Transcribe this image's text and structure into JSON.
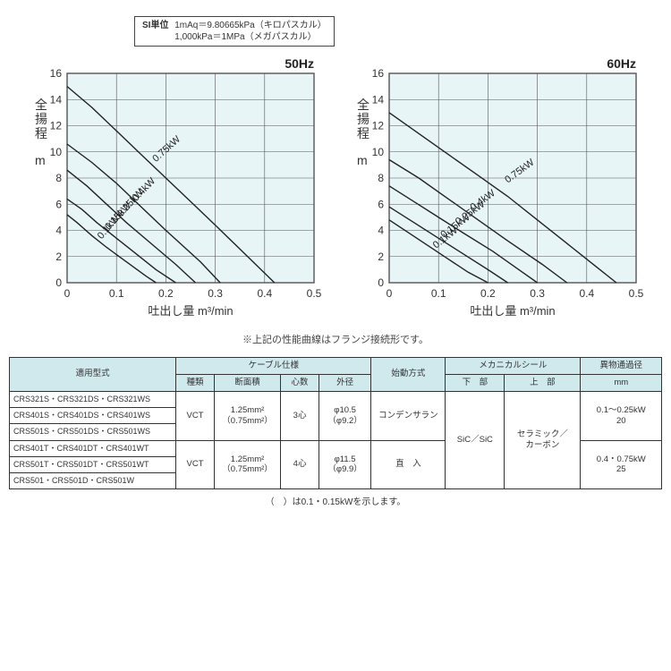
{
  "si_box": {
    "label": "SI単位",
    "line1": "1mAq＝9.80665kPa（キロパスカル）",
    "line2": "1,000kPa＝1MPa（メガパスカル）"
  },
  "charts": {
    "ylabel": "全揚程",
    "yunit": "m",
    "xlabel": "吐出し量 m³/min",
    "ylim": [
      0,
      16
    ],
    "ystep": 2,
    "xlim": [
      0,
      0.5
    ],
    "xstep": 0.1,
    "plot_bg": "#e8f5f7",
    "grid_color": "#555555",
    "line_color": "#222222",
    "line_width": 1.4,
    "label_font_size": 12,
    "axis_font_size": 12,
    "curve_label_font_size": 11,
    "left": {
      "title": "50Hz",
      "curves": [
        {
          "label": "0.1kW",
          "pts": [
            [
              0,
              5.2
            ],
            [
              0.02,
              4.6
            ],
            [
              0.05,
              3.6
            ],
            [
              0.08,
              2.7
            ],
            [
              0.12,
              1.6
            ],
            [
              0.16,
              0.5
            ],
            [
              0.18,
              0
            ]
          ],
          "lx": 0.07,
          "ly": 3.3,
          "rot": -50
        },
        {
          "label": "0.15kW",
          "pts": [
            [
              0,
              6.4
            ],
            [
              0.03,
              5.6
            ],
            [
              0.06,
              4.6
            ],
            [
              0.1,
              3.4
            ],
            [
              0.14,
              2.2
            ],
            [
              0.18,
              1.0
            ],
            [
              0.22,
              0
            ]
          ],
          "lx": 0.085,
          "ly": 4.0,
          "rot": -48
        },
        {
          "label": "0.25kW",
          "pts": [
            [
              0,
              8.6
            ],
            [
              0.04,
              7.4
            ],
            [
              0.08,
              6.0
            ],
            [
              0.12,
              4.6
            ],
            [
              0.17,
              3.0
            ],
            [
              0.22,
              1.4
            ],
            [
              0.26,
              0
            ]
          ],
          "lx": 0.11,
          "ly": 5.0,
          "rot": -48
        },
        {
          "label": "0.4kW",
          "pts": [
            [
              0,
              10.6
            ],
            [
              0.05,
              9.2
            ],
            [
              0.1,
              7.6
            ],
            [
              0.15,
              5.8
            ],
            [
              0.2,
              4.0
            ],
            [
              0.27,
              1.6
            ],
            [
              0.31,
              0
            ]
          ],
          "lx": 0.14,
          "ly": 6.2,
          "rot": -46
        },
        {
          "label": "0.75kW",
          "pts": [
            [
              0,
              15.0
            ],
            [
              0.05,
              13.4
            ],
            [
              0.1,
              11.6
            ],
            [
              0.15,
              9.8
            ],
            [
              0.2,
              8.0
            ],
            [
              0.25,
              6.2
            ],
            [
              0.3,
              4.4
            ],
            [
              0.36,
              2.2
            ],
            [
              0.42,
              0
            ]
          ],
          "lx": 0.18,
          "ly": 9.2,
          "rot": -42
        }
      ]
    },
    "right": {
      "title": "60Hz",
      "curves": [
        {
          "label": "0.1kW",
          "pts": [
            [
              0,
              4.8
            ],
            [
              0.04,
              3.8
            ],
            [
              0.08,
              2.8
            ],
            [
              0.12,
              1.8
            ],
            [
              0.16,
              0.8
            ],
            [
              0.2,
              0
            ]
          ],
          "lx": 0.095,
          "ly": 2.6,
          "rot": -38
        },
        {
          "label": "0.15kW",
          "pts": [
            [
              0,
              5.8
            ],
            [
              0.05,
              4.6
            ],
            [
              0.1,
              3.4
            ],
            [
              0.15,
              2.2
            ],
            [
              0.2,
              1.0
            ],
            [
              0.24,
              0
            ]
          ],
          "lx": 0.11,
          "ly": 3.4,
          "rot": -36
        },
        {
          "label": "0.25kW",
          "pts": [
            [
              0,
              7.4
            ],
            [
              0.05,
              6.2
            ],
            [
              0.1,
              5.0
            ],
            [
              0.15,
              3.8
            ],
            [
              0.21,
              2.4
            ],
            [
              0.27,
              0.8
            ],
            [
              0.3,
              0
            ]
          ],
          "lx": 0.14,
          "ly": 4.4,
          "rot": -36
        },
        {
          "label": "0.4kW",
          "pts": [
            [
              0,
              9.4
            ],
            [
              0.06,
              8.0
            ],
            [
              0.12,
              6.4
            ],
            [
              0.18,
              4.8
            ],
            [
              0.24,
              3.2
            ],
            [
              0.31,
              1.4
            ],
            [
              0.36,
              0
            ]
          ],
          "lx": 0.17,
          "ly": 5.5,
          "rot": -36
        },
        {
          "label": "0.75kW",
          "pts": [
            [
              0,
              13.0
            ],
            [
              0.06,
              11.4
            ],
            [
              0.12,
              9.8
            ],
            [
              0.18,
              8.2
            ],
            [
              0.24,
              6.6
            ],
            [
              0.3,
              4.8
            ],
            [
              0.36,
              3.0
            ],
            [
              0.42,
              1.2
            ],
            [
              0.46,
              0
            ]
          ],
          "lx": 0.24,
          "ly": 7.6,
          "rot": -36
        }
      ]
    }
  },
  "note_center": "※上記の性能曲線はフランジ接続形です。",
  "table": {
    "headers": {
      "model": "適用型式",
      "cable": "ケーブル仕様",
      "cable_type": "種類",
      "cable_area": "断面積",
      "cable_cores": "心数",
      "cable_od": "外径",
      "start": "始動方式",
      "mech": "メカニカルシール",
      "mech_lower": "下　部",
      "mech_upper": "上　部",
      "pass": "異物通過径",
      "pass_unit": "mm"
    },
    "rows": [
      {
        "models": "CRS321S・CRS321DS・CRS321WS"
      },
      {
        "models": "CRS401S・CRS401DS・CRS401WS"
      },
      {
        "models": "CRS501S・CRS501DS・CRS501WS"
      },
      {
        "models": "CRS401T・CRS401DT・CRS401WT"
      },
      {
        "models": "CRS501T・CRS501DT・CRS501WT"
      },
      {
        "models": "CRS501・CRS501D・CRS501W"
      }
    ],
    "vct1": "VCT",
    "area1_main": "1.25mm²",
    "area1_sub": "（0.75mm²）",
    "cores1": "3心",
    "od1_main": "φ10.5",
    "od1_sub": "（φ9.2）",
    "start1": "コンデンサラン",
    "vct2": "VCT",
    "area2_main": "1.25mm²",
    "area2_sub": "（0.75mm²）",
    "cores2": "4心",
    "od2_main": "φ11.5",
    "od2_sub": "（φ9.9）",
    "start2": "直　入",
    "mech_lower_val": "SiC／SiC",
    "mech_upper_val": "セラミック／\nカーボン",
    "pass1_top": "0.1～0.25kW",
    "pass1_bot": "20",
    "pass2_top": "0.4・0.75kW",
    "pass2_bot": "25"
  },
  "table_note": "（　）は0.1・0.15kWを示します。"
}
